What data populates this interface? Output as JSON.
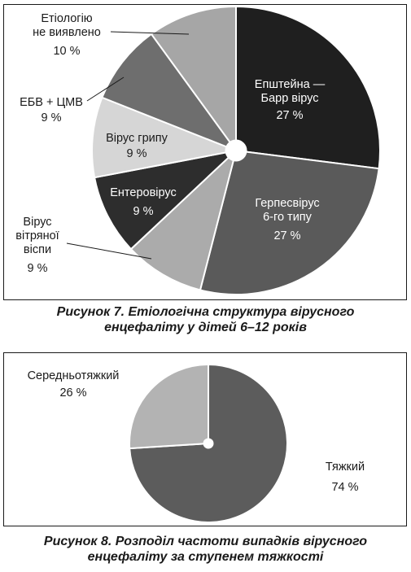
{
  "charts": [
    {
      "caption": [
        "Рисунок 7. Етіологічна структура вірусного",
        "енцефаліту у дітей 6–12 років"
      ]
    },
    {
      "caption": [
        "Рисунок 8. Розподіл частоти випадків вірусного",
        "енцефаліту за ступенем тяжкості"
      ]
    }
  ],
  "chart_data": [
    {
      "type": "pie",
      "title": "",
      "slices": [
        {
          "label": [
            "Епштейна —",
            "Барр вірус"
          ],
          "value_label": "27 %",
          "value": 27,
          "color": "#1f1f1f",
          "text_color": "#ffffff"
        },
        {
          "label": [
            "Герпесвірус",
            "6-го типу"
          ],
          "value_label": "27 %",
          "value": 27,
          "color": "#5a5a5a",
          "text_color": "#ffffff"
        },
        {
          "label": [
            "Вірус",
            "вітряної",
            "віспи"
          ],
          "value_label": "9 %",
          "value": 9,
          "color": "#ababab",
          "text_color": "#1a1a1a"
        },
        {
          "label": [
            "Ентеровірус"
          ],
          "value_label": "9 %",
          "value": 9,
          "color": "#2d2d2d",
          "text_color": "#ffffff"
        },
        {
          "label": [
            "Вірус грипу"
          ],
          "value_label": "9 %",
          "value": 9,
          "color": "#d6d6d6",
          "text_color": "#1a1a1a"
        },
        {
          "label": [
            "ЕБВ + ЦМВ"
          ],
          "value_label": "9 %",
          "value": 9,
          "color": "#6e6e6e",
          "text_color": "#1a1a1a"
        },
        {
          "label": [
            "Етіологію",
            "не виявлено"
          ],
          "value_label": "10 %",
          "value": 10,
          "color": "#a6a6a6",
          "text_color": "#1a1a1a"
        }
      ]
    },
    {
      "type": "pie",
      "title": "",
      "slices": [
        {
          "label": [
            "Тяжкий"
          ],
          "value_label": "74 %",
          "value": 74,
          "color": "#5c5c5c",
          "text_color": "#1a1a1a"
        },
        {
          "label": [
            "Середньотяжкий"
          ],
          "value_label": "26 %",
          "value": 26,
          "color": "#b3b3b3",
          "text_color": "#1a1a1a"
        }
      ]
    }
  ]
}
